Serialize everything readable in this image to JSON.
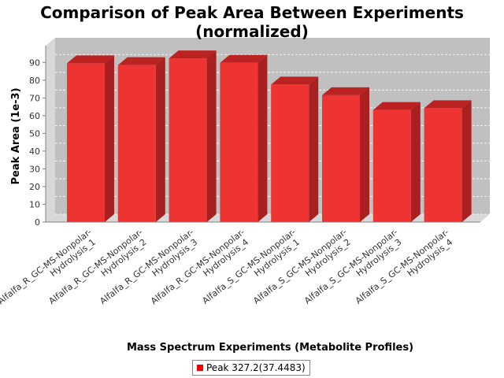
{
  "chart_data": {
    "type": "bar",
    "title_lines": [
      "Comparison of Peak Area Between Experiments",
      "(normalized)"
    ],
    "xlabel": "Mass Spectrum Experiments (Metabolite Profiles)",
    "ylabel": "Peak Area (1e-3)",
    "ylim": [
      0,
      95
    ],
    "yticks": [
      0,
      10,
      20,
      30,
      40,
      50,
      60,
      70,
      80,
      90
    ],
    "grid": true,
    "legend_position": "bottom",
    "categories": [
      [
        "Alfalfa_R_GC-MS-Nonpolar-",
        "Hydrolysis_1"
      ],
      [
        "Alfalfa_R_GC-MS-Nonpolar-",
        "Hydrolysis_2"
      ],
      [
        "Alfalfa_R_GC-MS-Nonpolar-",
        "Hydrolysis_3"
      ],
      [
        "Alfalfa_R_GC-MS-Nonpolar-",
        "Hydrolysis_4"
      ],
      [
        "Alfalfa_S_GC-MS-Nonpolar-",
        "Hydrolysis_1"
      ],
      [
        "Alfalfa_S_GC-MS-Nonpolar-",
        "Hydrolysis_2"
      ],
      [
        "Alfalfa_S_GC-MS-Nonpolar-",
        "Hydrolysis_3"
      ],
      [
        "Alfalfa_S_GC-MS-Nonpolar-",
        "Hydrolysis_4"
      ]
    ],
    "series": [
      {
        "name": "Peak 327.2(37.4483)",
        "values": [
          89.5,
          88.5,
          92.3,
          89.8,
          77.5,
          71.5,
          63.2,
          64.2
        ]
      }
    ],
    "colors": {
      "bar_front": "#ee3333",
      "bar_top": "#bb2222",
      "bar_side": "#a82020",
      "plot_bg": "#c0c0c0",
      "plot_wall": "#d8d8d8",
      "legend_swatch": "#ee0000"
    }
  }
}
